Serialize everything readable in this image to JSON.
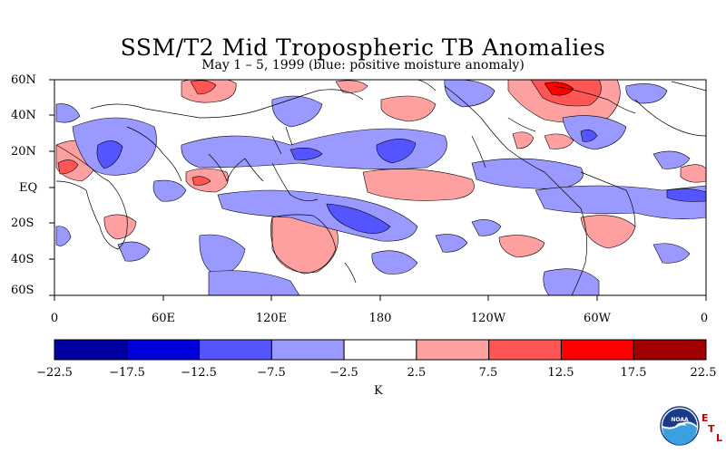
{
  "title": "SSM/T2 Mid Tropospheric TB Anomalies",
  "subtitle": "May 1 – 5, 1999 (blue: positive moisture anomaly)",
  "lat_labels": [
    "60N",
    "40N",
    "20N",
    "EQ",
    "20S",
    "40S",
    "60S"
  ],
  "lon_labels": [
    "0",
    "60E",
    "120E",
    "180",
    "120W",
    "60W",
    "0"
  ],
  "colorbar": {
    "labels": [
      "−22.5",
      "−17.5",
      "−12.5",
      "−7.5",
      "−2.5",
      "2.5",
      "7.5",
      "12.5",
      "17.5",
      "22.5"
    ],
    "unit": "K",
    "colors": [
      "#0000a0",
      "#0000dd",
      "#5555ff",
      "#9999ff",
      "#ffffff",
      "#ffa0a0",
      "#ff5555",
      "#ff0000",
      "#a00000"
    ]
  },
  "logo": {
    "text": "NOAA",
    "letters": [
      "E",
      "T",
      "L"
    ]
  }
}
